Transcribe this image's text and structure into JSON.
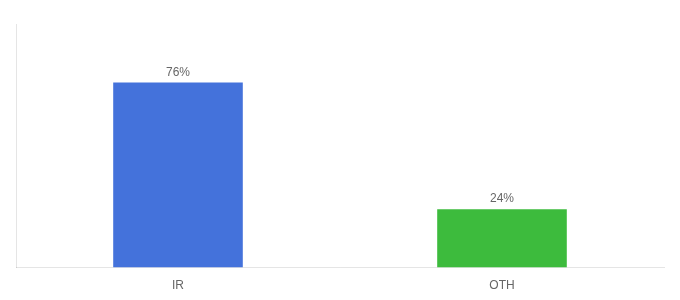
{
  "chart_data": {
    "type": "bar",
    "categories": [
      "IR",
      "OTH"
    ],
    "values": [
      76,
      24
    ],
    "value_labels": [
      "76%",
      "24%"
    ],
    "colors": [
      "#4472db",
      "#3dbb3d"
    ],
    "ylim": [
      0,
      100
    ],
    "grid": false,
    "data_labels": true,
    "tick_labels": "x"
  }
}
